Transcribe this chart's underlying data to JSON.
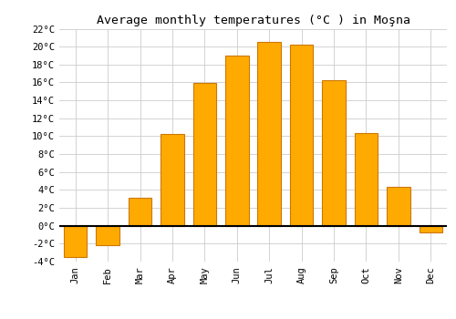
{
  "title": "Average monthly temperatures (°C ) in Moşna",
  "months": [
    "Jan",
    "Feb",
    "Mar",
    "Apr",
    "May",
    "Jun",
    "Jul",
    "Aug",
    "Sep",
    "Oct",
    "Nov",
    "Dec"
  ],
  "values": [
    -3.5,
    -2.2,
    3.1,
    10.2,
    15.9,
    19.0,
    20.5,
    20.2,
    16.2,
    10.3,
    4.3,
    -0.7
  ],
  "bar_color": "#FFAA00",
  "bar_edge_color": "#CC7700",
  "ylim": [
    -4,
    22
  ],
  "yticks": [
    -4,
    -2,
    0,
    2,
    4,
    6,
    8,
    10,
    12,
    14,
    16,
    18,
    20,
    22
  ],
  "background_color": "#ffffff",
  "grid_color": "#cccccc",
  "title_fontsize": 9.5,
  "tick_fontsize": 7.5
}
